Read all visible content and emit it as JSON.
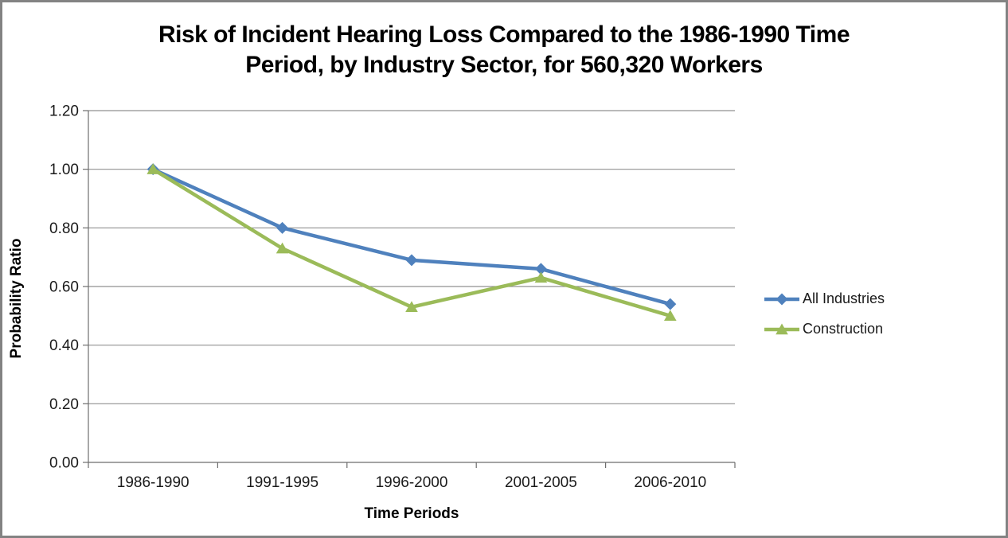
{
  "window": {
    "background": "#ffffff",
    "border_color": "#838383"
  },
  "chart_data": {
    "type": "line",
    "title": "Risk of Incident Hearing Loss Compared to the 1986-1990 Time Period, by Industry Sector, for 560,320 Workers",
    "title_lines": [
      "Risk of Incident Hearing Loss Compared to the 1986-1990 Time",
      "Period, by Industry Sector, for 560,320 Workers"
    ],
    "xlabel": "Time Periods",
    "ylabel": "Probability Ratio",
    "categories": [
      "1986-1990",
      "1991-1995",
      "1996-2000",
      "2001-2005",
      "2006-2010"
    ],
    "series": [
      {
        "name": "All Industries",
        "marker": "diamond",
        "color": "#4F81BD",
        "values": [
          1.0,
          0.8,
          0.69,
          0.66,
          0.54
        ]
      },
      {
        "name": "Construction",
        "marker": "triangle",
        "color": "#9BBB59",
        "values": [
          1.0,
          0.73,
          0.53,
          0.63,
          0.5
        ]
      }
    ],
    "ylim": [
      0,
      1.2
    ],
    "ytick_step": 0.2,
    "ytick_labels": [
      "0.00",
      "0.20",
      "0.40",
      "0.60",
      "0.80",
      "1.00",
      "1.20"
    ],
    "grid": true,
    "gridline_color": "#909090",
    "axis_color": "#6E6E6E",
    "text_color": "#1a1a1a",
    "legend_position": "right"
  }
}
